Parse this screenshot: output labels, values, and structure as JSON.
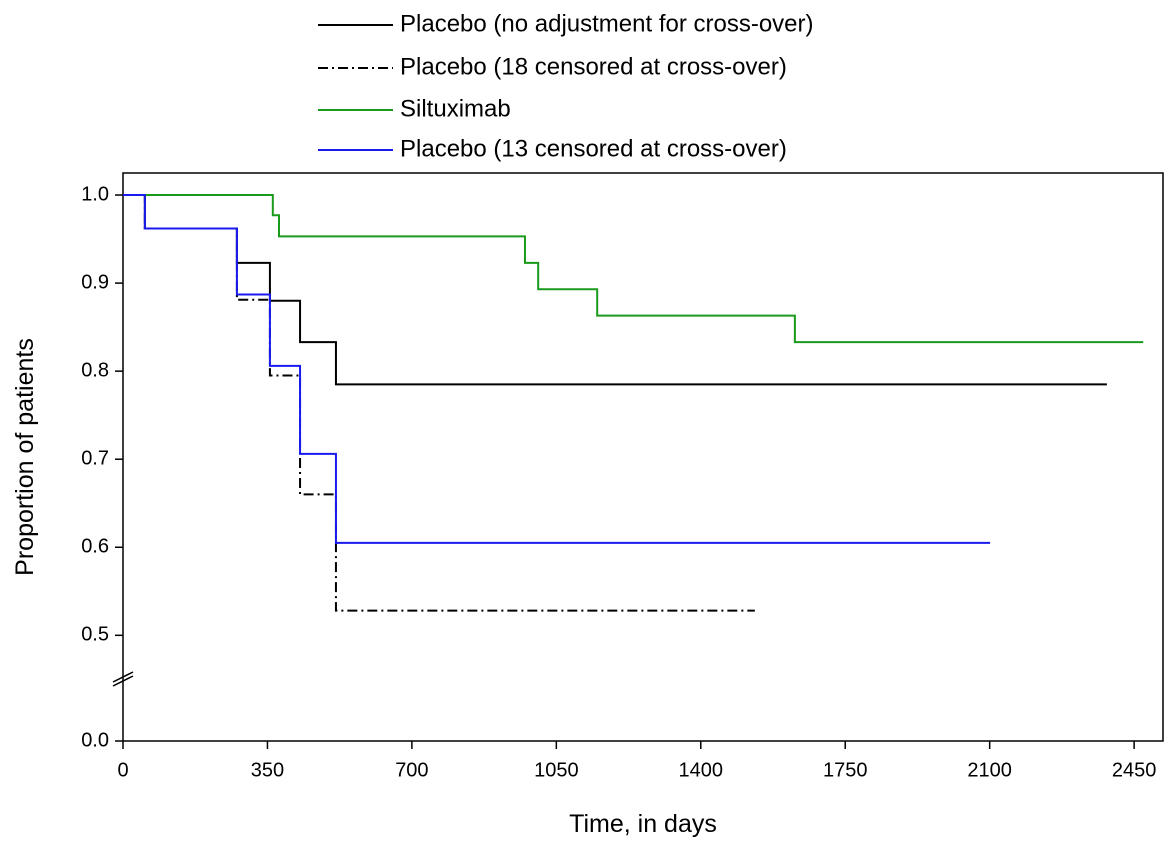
{
  "chart_data": {
    "type": "step",
    "x_label": "Time, in days",
    "y_label": "Proportion of patients",
    "xlim": [
      0,
      2520
    ],
    "xticks": [
      0,
      350,
      700,
      1050,
      1400,
      1750,
      2100,
      2450
    ],
    "ylim": [
      0,
      1.025
    ],
    "y_break": [
      0.07,
      0.45
    ],
    "yticks": [
      {
        "value": 0,
        "label": "0.0"
      },
      0.5,
      0.6,
      0.7,
      0.8,
      0.9,
      {
        "value": 1,
        "label": "1.0"
      }
    ],
    "legend": "top",
    "series": [
      {
        "name": "Placebo (no adjustment for cross-over)",
        "color": "#000000",
        "dash": "solid",
        "x": [
          0,
          53,
          276,
          356,
          429,
          516,
          2384
        ],
        "values": [
          1.0,
          0.962,
          0.923,
          0.88,
          0.833,
          0.785,
          0.785
        ]
      },
      {
        "name": "Placebo (18 censored at cross-over)",
        "color": "#000000",
        "dash": "dashdot",
        "x": [
          0,
          53,
          276,
          356,
          429,
          516,
          1531
        ],
        "values": [
          1.0,
          0.962,
          0.881,
          0.795,
          0.66,
          0.528,
          0.528
        ]
      },
      {
        "name": "Siltuximab",
        "color": "#1a9a1a",
        "dash": "solid",
        "x": [
          0,
          363,
          378,
          974,
          1006,
          1149,
          1628,
          2472
        ],
        "values": [
          1.0,
          0.977,
          0.953,
          0.923,
          0.893,
          0.863,
          0.833,
          0.833
        ]
      },
      {
        "name": "Placebo (13 censored at cross-over)",
        "color": "#1a1aee",
        "dash": "solid",
        "x": [
          0,
          53,
          276,
          356,
          429,
          516,
          2101
        ],
        "values": [
          1.0,
          0.962,
          0.887,
          0.806,
          0.706,
          0.605,
          0.605
        ]
      }
    ]
  }
}
